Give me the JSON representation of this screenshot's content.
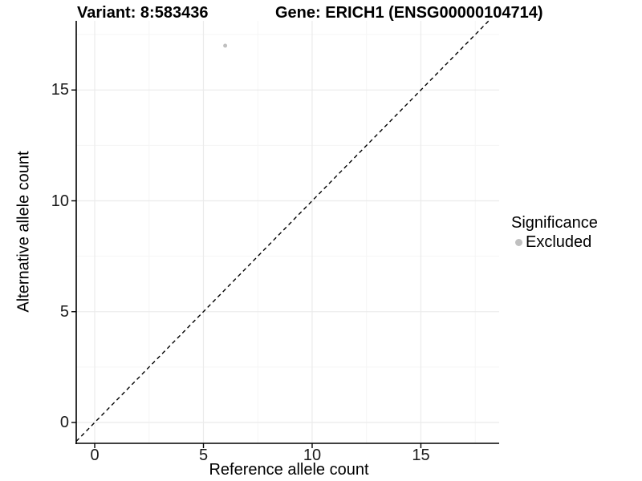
{
  "figure": {
    "title_left": "Variant: 8:583436",
    "title_right": "Gene: ERICH1 (ENSG00000104714)"
  },
  "chart_data": {
    "type": "scatter",
    "title": "Variant: 8:583436   Gene: ERICH1 (ENSG00000104714)",
    "xlabel": "Reference allele count",
    "ylabel": "Alternative allele count",
    "xlim": [
      -0.85,
      18.6
    ],
    "ylim": [
      -0.94,
      18.12
    ],
    "x_ticks": [
      0,
      5,
      10,
      15
    ],
    "y_ticks": [
      0,
      5,
      10,
      15
    ],
    "x_minor_breaks": [
      2.5,
      7.5,
      12.5,
      17.5
    ],
    "y_minor_breaks": [
      2.5,
      7.5,
      12.5,
      17.5
    ],
    "grid": true,
    "points": [
      {
        "x": 6,
        "y": 17,
        "series": "Excluded"
      }
    ],
    "reference_line": {
      "kind": "identity",
      "equation": "y = x",
      "style": "dashed",
      "color": "#000000"
    },
    "legend": {
      "title": "Significance",
      "position": "right",
      "items": [
        {
          "label": "Excluded",
          "color": "#c0c0c0",
          "marker": "circle"
        }
      ]
    },
    "colors": {
      "point": "#c0c0c0",
      "axis": "#000000",
      "tick_text": "#1a1a1a",
      "grid_major": "#ebebeb",
      "grid_minor": "#f5f5f5",
      "background": "#ffffff"
    }
  }
}
